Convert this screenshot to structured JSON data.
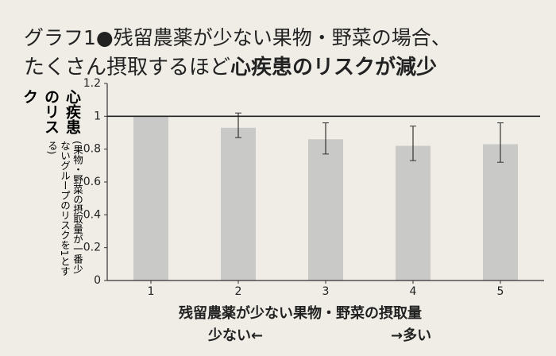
{
  "chart_data": {
    "type": "bar",
    "title_line1": "グラフ1●残留農薬が少ない果物・野菜の場合、",
    "title_line2": "たくさん摂取するほど",
    "title_line2_bold": "心疾患のリスクが減少",
    "y_label": "心疾患のリスク",
    "y_label_note": "(果物・野菜の摂取量が一番少ないグループのリスクを1とする)",
    "x_label": "残留農薬が少ない果物・野菜の摂取量",
    "x_label_left": "少ない←",
    "x_label_right": "→多い",
    "categories": [
      "1",
      "2",
      "3",
      "4",
      "5"
    ],
    "values": [
      1,
      0.93,
      0.86,
      0.82,
      0.83
    ],
    "ci_low": [
      null,
      0.87,
      0.77,
      0.73,
      0.72
    ],
    "ci_high": [
      null,
      1.02,
      0.96,
      0.94,
      0.96
    ],
    "color": "#c9c9c7",
    "reference_line": 1,
    "ylim": [
      0,
      1.2
    ],
    "yticks": [
      0,
      0.2,
      0.4,
      0.6,
      0.8,
      1,
      1.2
    ]
  }
}
